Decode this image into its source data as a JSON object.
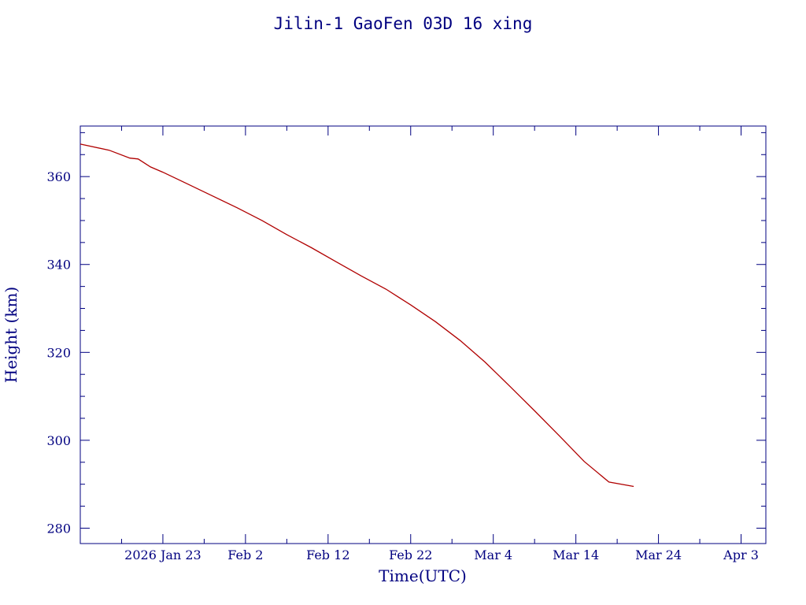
{
  "chart_data": {
    "type": "line",
    "title": "Jilin-1 GaoFen 03D 16 xing",
    "xlabel": "Time(UTC)",
    "ylabel": "Height (km)",
    "xlim": [
      "2026-01-13",
      "2026-04-06"
    ],
    "ylim": [
      276.5,
      371.5
    ],
    "x_ticks": [
      {
        "label": "2026 Jan 23",
        "date": "2026-01-23"
      },
      {
        "label": "Feb  2",
        "date": "2026-02-02"
      },
      {
        "label": "Feb 12",
        "date": "2026-02-12"
      },
      {
        "label": "Feb 22",
        "date": "2026-02-22"
      },
      {
        "label": "Mar  4",
        "date": "2026-03-04"
      },
      {
        "label": "Mar 14",
        "date": "2026-03-14"
      },
      {
        "label": "Mar 24",
        "date": "2026-03-24"
      },
      {
        "label": "Apr  3",
        "date": "2026-04-03"
      }
    ],
    "y_ticks": [
      280,
      300,
      320,
      340,
      360
    ],
    "grid": false,
    "colors": {
      "axes": "#000080",
      "text": "#000080",
      "line": "#b00000"
    },
    "series": [
      {
        "x": [
          "2026-01-13",
          "2026-01-16.5",
          "2026-01-19",
          "2026-01-20",
          "2026-01-21.5",
          "2026-01-23",
          "2026-01-26",
          "2026-01-29",
          "2026-02-01",
          "2026-02-04",
          "2026-02-07",
          "2026-02-10",
          "2026-02-13",
          "2026-02-16",
          "2026-02-19",
          "2026-02-22",
          "2026-02-25",
          "2026-02-28",
          "2026-03-03",
          "2026-03-06",
          "2026-03-09",
          "2026-03-12",
          "2026-03-15",
          "2026-03-18",
          "2026-03-21"
        ],
        "y": [
          367.4,
          366.0,
          364.2,
          364.0,
          362.2,
          361.0,
          358.3,
          355.6,
          352.9,
          350.0,
          346.8,
          343.8,
          340.6,
          337.4,
          334.4,
          330.8,
          327.0,
          322.7,
          317.8,
          312.3,
          306.7,
          301.0,
          295.2,
          290.5,
          289.5
        ]
      }
    ]
  }
}
